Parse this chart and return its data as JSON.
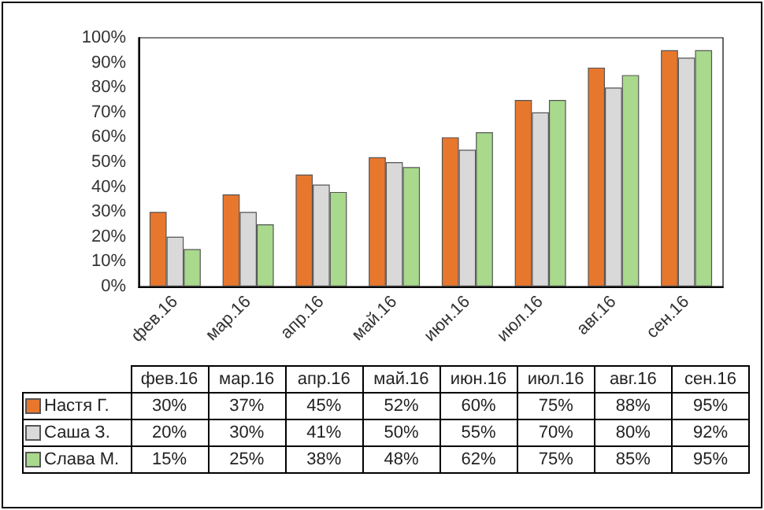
{
  "chart_data": {
    "type": "bar",
    "categories": [
      "фев.16",
      "мар.16",
      "апр.16",
      "май.16",
      "июн.16",
      "июл.16",
      "авг.16",
      "сен.16"
    ],
    "series": [
      {
        "name": "Настя Г.",
        "color": "#e8772e",
        "values": [
          30,
          37,
          45,
          52,
          60,
          75,
          88,
          95
        ],
        "value_labels": [
          "30%",
          "37%",
          "45%",
          "52%",
          "60%",
          "75%",
          "88%",
          "95%"
        ]
      },
      {
        "name": "Саша З.",
        "color": "#d9d9d9",
        "values": [
          20,
          30,
          41,
          50,
          55,
          70,
          80,
          92
        ],
        "value_labels": [
          "20%",
          "30%",
          "41%",
          "50%",
          "55%",
          "70%",
          "80%",
          "92%"
        ]
      },
      {
        "name": "Слава М.",
        "color": "#a9d98c",
        "values": [
          15,
          25,
          38,
          48,
          62,
          75,
          85,
          95
        ],
        "value_labels": [
          "15%",
          "25%",
          "38%",
          "48%",
          "62%",
          "75%",
          "85%",
          "95%"
        ]
      }
    ],
    "ylim": [
      0,
      100
    ],
    "yticks": [
      {
        "value": 0,
        "label": "0%"
      },
      {
        "value": 10,
        "label": "10%"
      },
      {
        "value": 20,
        "label": "20%"
      },
      {
        "value": 30,
        "label": "30%"
      },
      {
        "value": 40,
        "label": "40%"
      },
      {
        "value": 50,
        "label": "50%"
      },
      {
        "value": 60,
        "label": "60%"
      },
      {
        "value": 70,
        "label": "70%"
      },
      {
        "value": 80,
        "label": "80%"
      },
      {
        "value": 90,
        "label": "90%"
      },
      {
        "value": 100,
        "label": "100%"
      }
    ],
    "legend": "bottom"
  }
}
